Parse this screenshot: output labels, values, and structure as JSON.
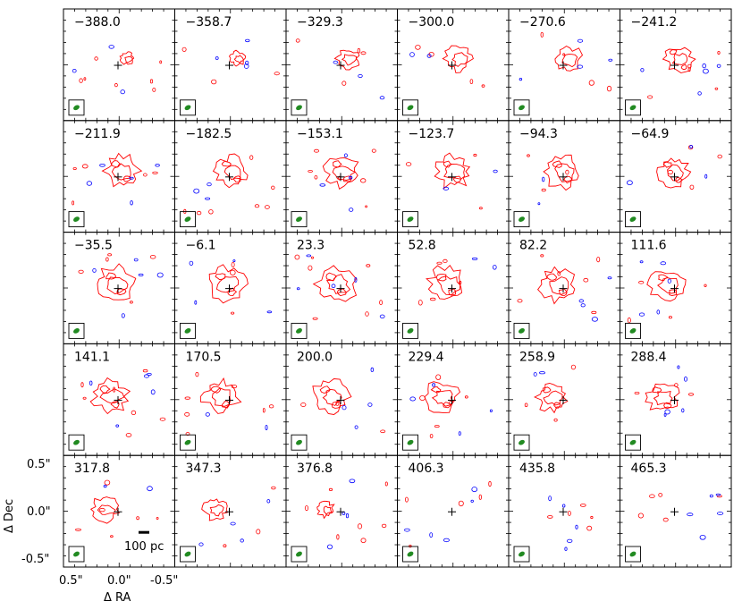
{
  "chart_data": {
    "type": "contour-channel-map-grid",
    "grid": {
      "rows": 5,
      "cols": 6
    },
    "velocities": [
      "−388.0",
      "−358.7",
      "−329.3",
      "−300.0",
      "−270.6",
      "−241.2",
      "−211.9",
      "−182.5",
      "−153.1",
      "−123.7",
      "−94.3",
      "−64.9",
      "−35.5",
      "−6.1",
      "23.3",
      "52.8",
      "82.2",
      "111.6",
      "141.1",
      "170.5",
      "200.0",
      "229.4",
      "258.9",
      "288.4",
      "317.8",
      "347.3",
      "376.8",
      "406.3",
      "435.8",
      "465.3"
    ],
    "xlabel": "Δ RA",
    "ylabel": "Δ Dec",
    "x_ticks": [
      "0.5\"",
      "0.0\"",
      "-0.5\""
    ],
    "y_ticks": [
      "0.5\"",
      "0.0\"",
      "-0.5\""
    ],
    "xlim": [
      0.5,
      -0.5
    ],
    "ylim": [
      -0.5,
      0.5
    ],
    "scale_bar": "100 pc",
    "colors": {
      "positive_contour": "#ff0000",
      "negative_contour": "#0000ff",
      "beam": "#228b22",
      "marker": "#000000",
      "frame": "#000000"
    },
    "marker": "+",
    "beam_icon": "beam-ellipse"
  }
}
